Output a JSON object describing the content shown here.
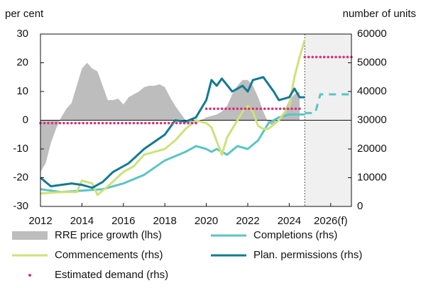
{
  "chart_data": {
    "type": "line",
    "ylabel": "per cent",
    "y2label": "number of units",
    "xlim": [
      2012,
      2027
    ],
    "xticks": [
      2012,
      2014,
      2016,
      2018,
      2020,
      2022,
      2024,
      {
        "value": 2026,
        "label": "2026(f)"
      }
    ],
    "ylim": [
      -30,
      30
    ],
    "yticks": [
      -30,
      -20,
      -10,
      0,
      10,
      20,
      30
    ],
    "y2lim": [
      0,
      60000
    ],
    "y2ticks": [
      0,
      10000,
      20000,
      30000,
      40000,
      50000,
      60000
    ],
    "forecast_region": [
      2024.75,
      2027
    ],
    "series": [
      {
        "name": "RRE price growth (lhs)",
        "kind": "area",
        "color": "#bdbdbd",
        "x": [
          2012,
          2012.25,
          2012.5,
          2012.75,
          2013,
          2013.25,
          2013.5,
          2013.75,
          2014,
          2014.25,
          2014.5,
          2014.75,
          2015,
          2015.25,
          2015.5,
          2015.75,
          2016,
          2016.25,
          2016.5,
          2016.75,
          2017,
          2017.25,
          2017.5,
          2017.75,
          2018,
          2018.25,
          2018.5,
          2018.75,
          2019,
          2019.25,
          2019.5,
          2019.75,
          2020,
          2020.25,
          2020.5,
          2020.75,
          2021,
          2021.25,
          2021.5,
          2021.75,
          2022,
          2022.25,
          2022.5,
          2022.75,
          2023,
          2023.25,
          2023.5,
          2023.75,
          2024,
          2024.25,
          2024.5
        ],
        "values": [
          -18,
          -15,
          -8,
          -3,
          1,
          4,
          6,
          12,
          18,
          20,
          18,
          17,
          12,
          7,
          7,
          7.5,
          5.5,
          8,
          9,
          10,
          11.5,
          12,
          12,
          12.5,
          11.5,
          8,
          5,
          2.5,
          0,
          -1,
          -1,
          0,
          1,
          1.5,
          2,
          3,
          5,
          9,
          12,
          14,
          14,
          12,
          8,
          3,
          -1,
          -2,
          0,
          3,
          7,
          9,
          10
        ]
      },
      {
        "name": "Completions (rhs)",
        "kind": "line",
        "color": "#5bc4c4",
        "axis": "y2",
        "x": [
          2012,
          2013,
          2014,
          2015,
          2016,
          2017,
          2018,
          2019,
          2019.5,
          2020,
          2020.25,
          2020.5,
          2021,
          2021.5,
          2022,
          2022.5,
          2023,
          2023.5,
          2024,
          2024.75
        ],
        "values": [
          6000,
          5000,
          5500,
          6000,
          8000,
          11000,
          16000,
          19000,
          21000,
          20000,
          19000,
          20000,
          18000,
          21000,
          20000,
          23000,
          29000,
          31000,
          32000,
          32000
        ],
        "forecast": {
          "x": [
            2024.75,
            2025.25,
            2025.5,
            2027
          ],
          "values": [
            32500,
            32500,
            39000,
            39000
          ]
        }
      },
      {
        "name": "Commencements (rhs)",
        "kind": "line",
        "color": "#cde27a",
        "axis": "y2",
        "x": [
          2012,
          2013,
          2013.75,
          2014,
          2014.5,
          2014.75,
          2015.25,
          2016,
          2016.5,
          2017,
          2018,
          2018.5,
          2019,
          2019.5,
          2020,
          2020.25,
          2020.75,
          2021,
          2021.5,
          2021.75,
          2022,
          2022.25,
          2022.5,
          2022.75,
          2023,
          2023.5,
          2024,
          2024.25,
          2024.5,
          2024.75
        ],
        "values": [
          4500,
          5000,
          5000,
          9000,
          8000,
          4000,
          7000,
          12000,
          14000,
          18000,
          20000,
          23000,
          27000,
          30000,
          29000,
          27500,
          18000,
          24000,
          30000,
          33000,
          35000,
          33000,
          28000,
          27000,
          27000,
          30000,
          35000,
          45000,
          52000,
          58000
        ]
      },
      {
        "name": "Plan. permissions (rhs)",
        "kind": "line",
        "color": "#127a94",
        "axis": "y2",
        "x": [
          2012,
          2012.5,
          2013.5,
          2014,
          2014.5,
          2015,
          2015.5,
          2016.25,
          2017,
          2018,
          2018.5,
          2019,
          2019.5,
          2020,
          2020.25,
          2020.5,
          2020.75,
          2021.25,
          2021.75,
          2022,
          2022.25,
          2022.75,
          2023.25,
          2023.5,
          2024,
          2024.25,
          2024.5,
          2024.75
        ],
        "values": [
          10000,
          7000,
          8000,
          7500,
          6500,
          8500,
          12000,
          15000,
          20000,
          25000,
          30000,
          29500,
          31000,
          37000,
          44000,
          42000,
          44500,
          40000,
          42000,
          40000,
          44000,
          45000,
          40000,
          37000,
          38000,
          41000,
          38000,
          38000
        ]
      },
      {
        "name": "Estimated demand (rhs)",
        "kind": "dots",
        "color": "#d6337a",
        "axis": "y2",
        "x": [
          2012,
          2019.5,
          2020,
          2024.5,
          2024.75,
          2027
        ],
        "values": [
          29000,
          29000,
          34000,
          34000,
          52000,
          52000
        ]
      }
    ]
  }
}
